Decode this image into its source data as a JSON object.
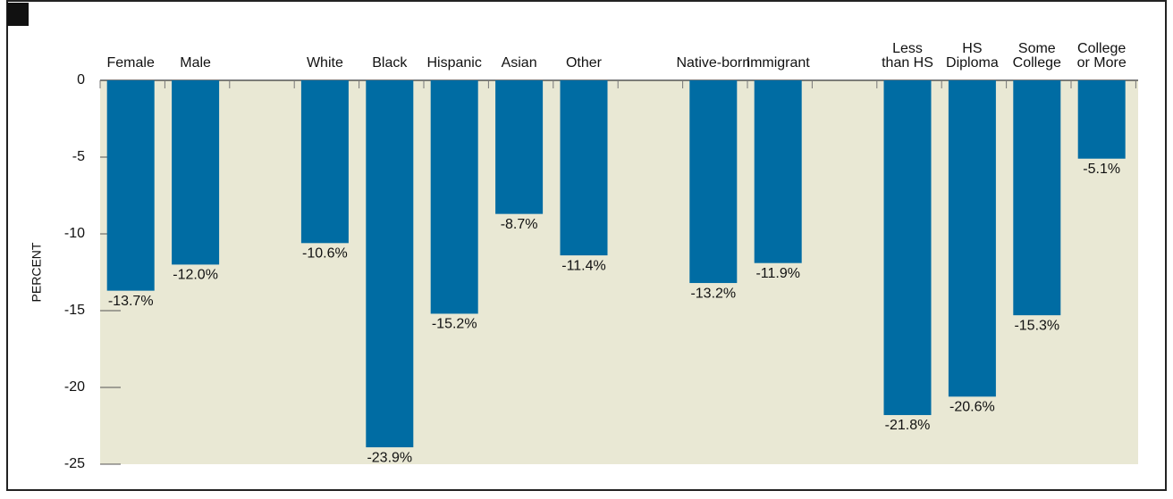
{
  "chart_data": {
    "type": "bar",
    "y_label": "PERCENT",
    "categories": [
      "Female",
      "Male",
      null,
      "White",
      "Black",
      "Hispanic",
      "Asian",
      "Other",
      null,
      "Native-born",
      "Immigrant",
      null,
      "Less\nthan HS",
      "HS\nDiploma",
      "Some\nCollege",
      "College\nor More"
    ],
    "values": [
      -13.7,
      -12.0,
      null,
      -10.6,
      -23.9,
      -15.2,
      -8.7,
      -11.4,
      null,
      -13.2,
      -11.9,
      null,
      -21.8,
      -20.6,
      -15.3,
      -5.1
    ],
    "value_labels": [
      "-13.7%",
      "-12.0%",
      null,
      "-10.6%",
      "-23.9%",
      "-15.2%",
      "-8.7%",
      "-11.4%",
      null,
      "-13.2%",
      "-11.9%",
      null,
      "-21.8%",
      "-20.6%",
      "-15.3%",
      "-5.1%"
    ],
    "color": "#006ca3",
    "ylim": [
      -25,
      0
    ],
    "yticks": [
      0,
      -5,
      -10,
      -15,
      -20,
      -25
    ]
  }
}
